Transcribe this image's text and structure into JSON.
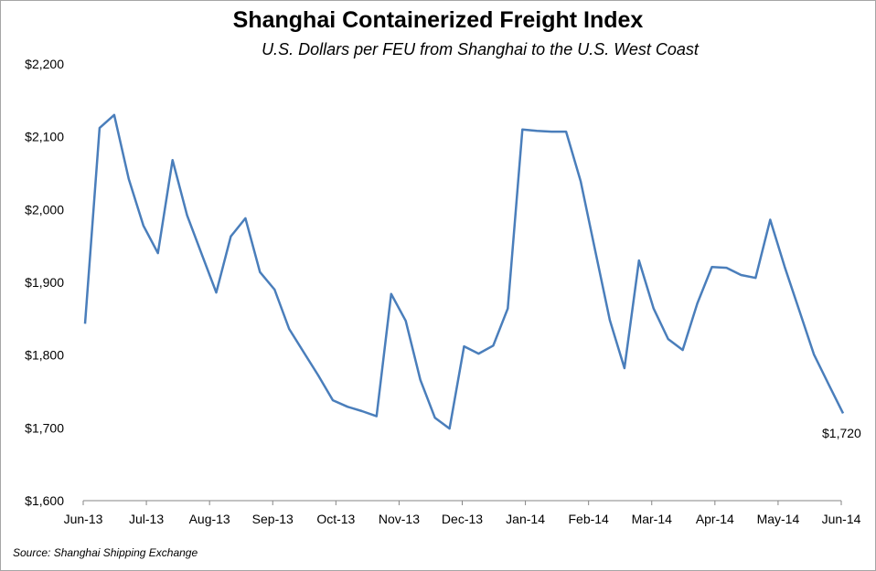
{
  "chart_data": {
    "type": "line",
    "title": "Shanghai Containerized Freight Index",
    "subtitle": "U.S. Dollars per FEU from Shanghai to the U.S. West Coast",
    "xlabel": "",
    "ylabel": "",
    "x_tick_labels": [
      "Jun-13",
      "Jul-13",
      "Aug-13",
      "Sep-13",
      "Oct-13",
      "Nov-13",
      "Dec-13",
      "Jan-14",
      "Feb-14",
      "Mar-14",
      "Apr-14",
      "May-14",
      "Jun-14"
    ],
    "y_tick_labels": [
      "$1,600",
      "$1,700",
      "$1,800",
      "$1,900",
      "$2,000",
      "$2,100",
      "$2,200"
    ],
    "ylim": [
      1600,
      2200
    ],
    "grid": false,
    "frequency": "weekly",
    "series": [
      {
        "color": "#4a7ebb",
        "values": [
          1843,
          2112,
          2130,
          2042,
          1978,
          1940,
          2068,
          1992,
          1939,
          1886,
          1963,
          1988,
          1914,
          1890,
          1836,
          1804,
          1772,
          1738,
          1729,
          1723,
          1716,
          1884,
          1847,
          1766,
          1714,
          1699,
          1812,
          1802,
          1813,
          1864,
          2110,
          2108,
          2107,
          2107,
          2039,
          1943,
          1848,
          1782,
          1930,
          1864,
          1822,
          1807,
          1871,
          1921,
          1920,
          1910,
          1906,
          1986,
          1921,
          1861,
          1801,
          1760,
          1720
        ]
      }
    ],
    "annotations": [
      {
        "label": "$1,720"
      }
    ]
  },
  "source": "Source: Shanghai Shipping Exchange"
}
